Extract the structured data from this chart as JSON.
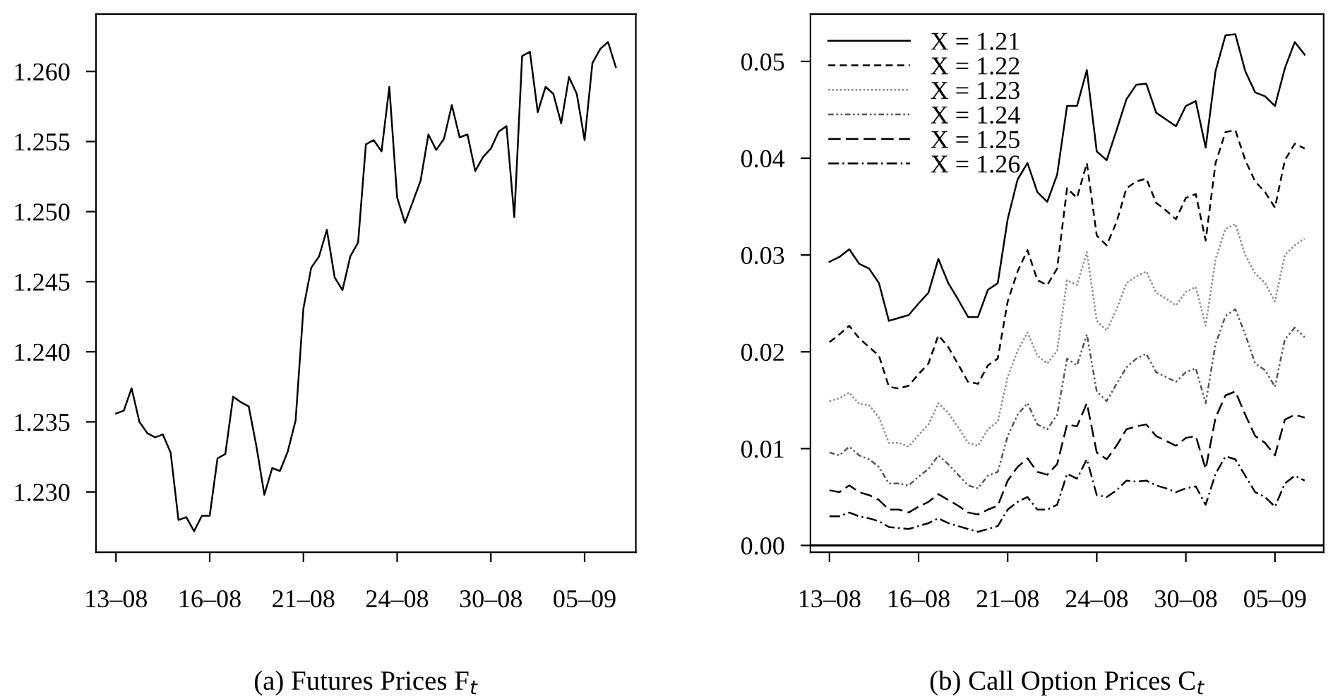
{
  "chart_data": [
    {
      "type": "line",
      "title": "(a) Futures Prices F$_{t}$",
      "ylim": [
        1.2257,
        1.2641
      ],
      "categories": [
        "13–08",
        null,
        null,
        null,
        null,
        null,
        null,
        null,
        null,
        null,
        null,
        null,
        "16–08",
        null,
        null,
        null,
        null,
        null,
        null,
        null,
        null,
        null,
        null,
        null,
        "21–08",
        null,
        null,
        null,
        null,
        null,
        null,
        null,
        null,
        null,
        null,
        null,
        "24–08",
        null,
        null,
        null,
        null,
        null,
        null,
        null,
        null,
        null,
        null,
        null,
        "30–08",
        null,
        null,
        null,
        null,
        null,
        null,
        null,
        null,
        null,
        null,
        null,
        "05–09",
        null,
        null,
        null,
        null
      ],
      "yticks": [
        {
          "value": 1.23,
          "label": "1.230"
        },
        {
          "value": 1.235,
          "label": "1.235"
        },
        {
          "value": 1.24,
          "label": "1.240"
        },
        {
          "value": 1.245,
          "label": "1.245"
        },
        {
          "value": 1.25,
          "label": "1.250"
        },
        {
          "value": 1.255,
          "label": "1.255"
        },
        {
          "value": 1.26,
          "label": "1.260"
        }
      ],
      "grid": false,
      "legend": false,
      "line_style": "solid",
      "series": [
        {
          "color": "#000000",
          "values": [
            1.2356,
            1.2358,
            1.2374,
            1.235,
            1.2342,
            1.2339,
            1.2341,
            1.2328,
            1.228,
            1.2282,
            1.2272,
            1.2283,
            1.2283,
            1.2324,
            1.2327,
            1.2368,
            1.2364,
            1.2361,
            1.2332,
            1.2298,
            1.2317,
            1.2315,
            1.2329,
            1.2351,
            1.2431,
            1.246,
            1.2468,
            1.2487,
            1.2453,
            1.2444,
            1.2468,
            1.2478,
            1.2548,
            1.2551,
            1.2543,
            1.2589,
            1.251,
            1.2492,
            1.2507,
            1.2522,
            1.2555,
            1.2544,
            1.2552,
            1.2576,
            1.2553,
            1.2555,
            1.2529,
            1.2539,
            1.2545,
            1.2557,
            1.2561,
            1.2496,
            1.2611,
            1.2614,
            1.2571,
            1.2589,
            1.2584,
            1.2563,
            1.2596,
            1.2584,
            1.2551,
            1.2606,
            1.2616,
            1.2621,
            1.2603
          ]
        }
      ]
    },
    {
      "type": "line",
      "title": "(b) Call Option Prices C$_{t}$",
      "ylim": [
        -0.0007,
        0.0549
      ],
      "categories": [
        "13–08",
        null,
        null,
        null,
        null,
        null,
        null,
        null,
        null,
        "16–08",
        null,
        null,
        null,
        null,
        null,
        null,
        null,
        null,
        "21–08",
        null,
        null,
        null,
        null,
        null,
        null,
        null,
        null,
        "24–08",
        null,
        null,
        null,
        null,
        null,
        null,
        null,
        null,
        "30–08",
        null,
        null,
        null,
        null,
        null,
        null,
        null,
        null,
        "05–09",
        null,
        null,
        null
      ],
      "yticks": [
        {
          "value": 0,
          "label": "0.00"
        },
        0.01,
        0.02,
        0.03,
        0.04,
        0.05
      ],
      "grid": false,
      "legend": "top left",
      "ref_lines": [
        {
          "axis": "y",
          "value": 0,
          "color": "#000000",
          "line_style": "solid"
        }
      ],
      "series": [
        {
          "name": "X = 1.21",
          "color": "#000000",
          "line_style": "solid",
          "values": [
            0.0293,
            0.0298,
            0.0306,
            0.0291,
            0.0286,
            0.0271,
            0.0232,
            0.0235,
            0.0238,
            0.025,
            0.0261,
            0.0296,
            0.0271,
            0.0254,
            0.0236,
            0.0236,
            0.0264,
            0.0271,
            0.0337,
            0.0378,
            0.0395,
            0.0365,
            0.0355,
            0.0383,
            0.0454,
            0.0454,
            0.0491,
            0.0407,
            0.0398,
            0.0429,
            0.0461,
            0.0476,
            0.0477,
            0.0447,
            0.044,
            0.0433,
            0.0454,
            0.0459,
            0.0411,
            0.049,
            0.0527,
            0.0528,
            0.049,
            0.0468,
            0.0464,
            0.0454,
            0.0493,
            0.052,
            0.0507
          ]
        },
        {
          "name": "X = 1.22",
          "color": "#000000",
          "line_style": "dashed",
          "values": [
            0.021,
            0.0218,
            0.0227,
            0.0214,
            0.0205,
            0.0196,
            0.0164,
            0.0162,
            0.0165,
            0.0177,
            0.0188,
            0.0217,
            0.0205,
            0.0187,
            0.0169,
            0.0167,
            0.0186,
            0.0193,
            0.0252,
            0.0283,
            0.0305,
            0.0274,
            0.0269,
            0.0286,
            0.0369,
            0.0359,
            0.0395,
            0.032,
            0.031,
            0.0334,
            0.0369,
            0.0376,
            0.0379,
            0.0354,
            0.0346,
            0.0337,
            0.0359,
            0.0363,
            0.0315,
            0.0395,
            0.0427,
            0.0429,
            0.0398,
            0.0376,
            0.0365,
            0.0349,
            0.0398,
            0.0415,
            0.041
          ]
        },
        {
          "name": "X = 1.23",
          "color": "#888888",
          "line_style": "dotted",
          "values": [
            0.0149,
            0.0152,
            0.0158,
            0.0146,
            0.0145,
            0.0132,
            0.0106,
            0.0106,
            0.0102,
            0.0114,
            0.0125,
            0.0147,
            0.0137,
            0.0122,
            0.0106,
            0.0103,
            0.012,
            0.0128,
            0.0174,
            0.0201,
            0.022,
            0.0196,
            0.0188,
            0.0201,
            0.0274,
            0.0269,
            0.0303,
            0.0232,
            0.0222,
            0.0244,
            0.0271,
            0.0278,
            0.0283,
            0.0261,
            0.0255,
            0.0248,
            0.0262,
            0.0267,
            0.0227,
            0.0296,
            0.0327,
            0.0332,
            0.03,
            0.0281,
            0.0271,
            0.0252,
            0.03,
            0.031,
            0.0317
          ]
        },
        {
          "name": "X = 1.24",
          "color": "#555555",
          "line_style": "dashdotdot",
          "values": [
            0.0096,
            0.0093,
            0.0102,
            0.0093,
            0.0089,
            0.0081,
            0.0064,
            0.0064,
            0.0062,
            0.0071,
            0.0079,
            0.0093,
            0.0084,
            0.0073,
            0.0062,
            0.0059,
            0.0072,
            0.0076,
            0.0113,
            0.0135,
            0.0147,
            0.0125,
            0.012,
            0.0135,
            0.0193,
            0.0186,
            0.0218,
            0.0159,
            0.0149,
            0.0167,
            0.0184,
            0.0193,
            0.0198,
            0.0179,
            0.0174,
            0.0169,
            0.0179,
            0.0183,
            0.0147,
            0.0208,
            0.0237,
            0.0244,
            0.0218,
            0.0188,
            0.0181,
            0.0164,
            0.0213,
            0.0225,
            0.0215
          ]
        },
        {
          "name": "X = 1.25",
          "color": "#000000",
          "line_style": "longdash",
          "values": [
            0.0057,
            0.0055,
            0.0062,
            0.0055,
            0.0052,
            0.0047,
            0.0037,
            0.0037,
            0.0034,
            0.004,
            0.0045,
            0.0053,
            0.0047,
            0.0041,
            0.0034,
            0.0032,
            0.0037,
            0.0041,
            0.0067,
            0.0081,
            0.009,
            0.0076,
            0.0073,
            0.0084,
            0.0125,
            0.0123,
            0.0147,
            0.0096,
            0.0089,
            0.0103,
            0.012,
            0.0123,
            0.0125,
            0.0113,
            0.0108,
            0.0103,
            0.0111,
            0.0113,
            0.0079,
            0.0132,
            0.0155,
            0.0159,
            0.0135,
            0.0113,
            0.0106,
            0.0093,
            0.013,
            0.0135,
            0.0132
          ]
        },
        {
          "name": "X = 1.26",
          "color": "#000000",
          "line_style": "dashdot",
          "values": [
            0.003,
            0.003,
            0.0034,
            0.003,
            0.0028,
            0.0025,
            0.0019,
            0.0018,
            0.0017,
            0.002,
            0.0023,
            0.0028,
            0.0023,
            0.002,
            0.0017,
            0.0014,
            0.0017,
            0.002,
            0.0037,
            0.0045,
            0.005,
            0.0037,
            0.0037,
            0.0042,
            0.0074,
            0.0069,
            0.0089,
            0.0052,
            0.005,
            0.0057,
            0.0067,
            0.0066,
            0.0067,
            0.0062,
            0.0059,
            0.0055,
            0.0059,
            0.0061,
            0.0042,
            0.0074,
            0.0092,
            0.0089,
            0.0072,
            0.0055,
            0.005,
            0.004,
            0.0064,
            0.0072,
            0.0067
          ]
        }
      ]
    }
  ]
}
